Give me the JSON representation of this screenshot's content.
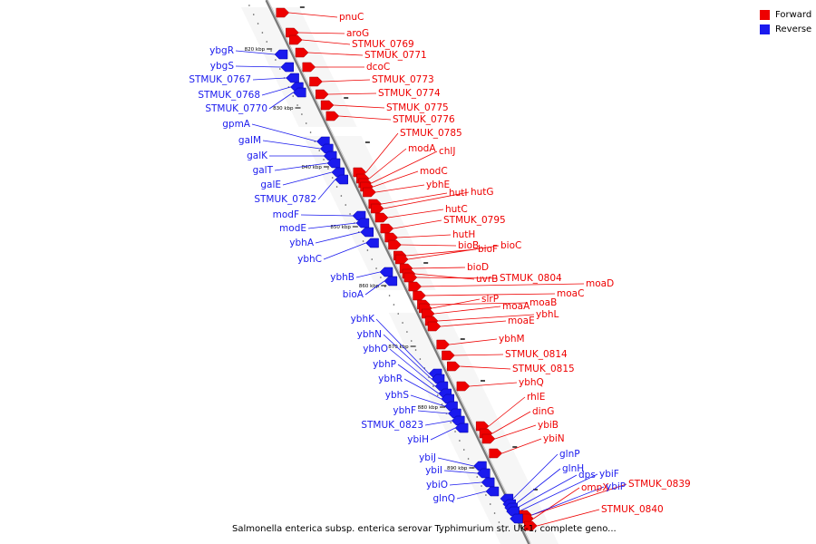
{
  "legend": {
    "items": [
      {
        "label": "Forward",
        "color": "#ee0000"
      },
      {
        "label": "Reverse",
        "color": "#1a1aee"
      }
    ]
  },
  "caption": "Salmonella enterica subsp. enterica serovar Typhimurium str. UK-1, complete geno...",
  "colors": {
    "forward": "#ee0000",
    "reverse": "#1a1aee",
    "backbone": "#808080"
  },
  "ticks": [
    "820 kbp",
    "830 kbp",
    "840 kbp",
    "850 kbp",
    "860 kbp",
    "870 kbp",
    "880 kbp",
    "890 kbp"
  ],
  "forward_genes": [
    "pnuC",
    "aroG",
    "STMUK_0769",
    "STMUK_0771",
    "dcoC",
    "STMUK_0773",
    "STMUK_0774",
    "STMUK_0775",
    "STMUK_0776",
    "STMUK_0785",
    "modA",
    "chlJ",
    "modC",
    "ybhE",
    "hutI",
    "hutG",
    "hutC",
    "STMUK_0795",
    "hutH",
    "bioB",
    "bioF",
    "bioC",
    "bioD",
    "uvrB",
    "STMUK_0804",
    "moaD",
    "moaC",
    "moaB",
    "slrP",
    "moaA",
    "ybhL",
    "moaE",
    "ybhM",
    "STMUK_0814",
    "STMUK_0815",
    "ybhQ",
    "rhlE",
    "dinG",
    "ybiB",
    "ybiN",
    "STMUK_0839",
    "ompX",
    "STMUK_0840"
  ],
  "reverse_genes": [
    "ybgR",
    "ybgS",
    "STMUK_0767",
    "STMUK_0768",
    "STMUK_0770",
    "gpmA",
    "galM",
    "galK",
    "galT",
    "galE",
    "STMUK_0782",
    "modF",
    "modE",
    "ybhA",
    "ybhC",
    "ybhB",
    "bioA",
    "ybhK",
    "ybhN",
    "ybhO",
    "ybhP",
    "ybhR",
    "ybhS",
    "ybhF",
    "STMUK_0823",
    "ybiH",
    "ybiJ",
    "ybiI",
    "ybiO",
    "glnQ",
    "glnP",
    "glnH",
    "dps",
    "ybiF",
    "ybiP"
  ]
}
